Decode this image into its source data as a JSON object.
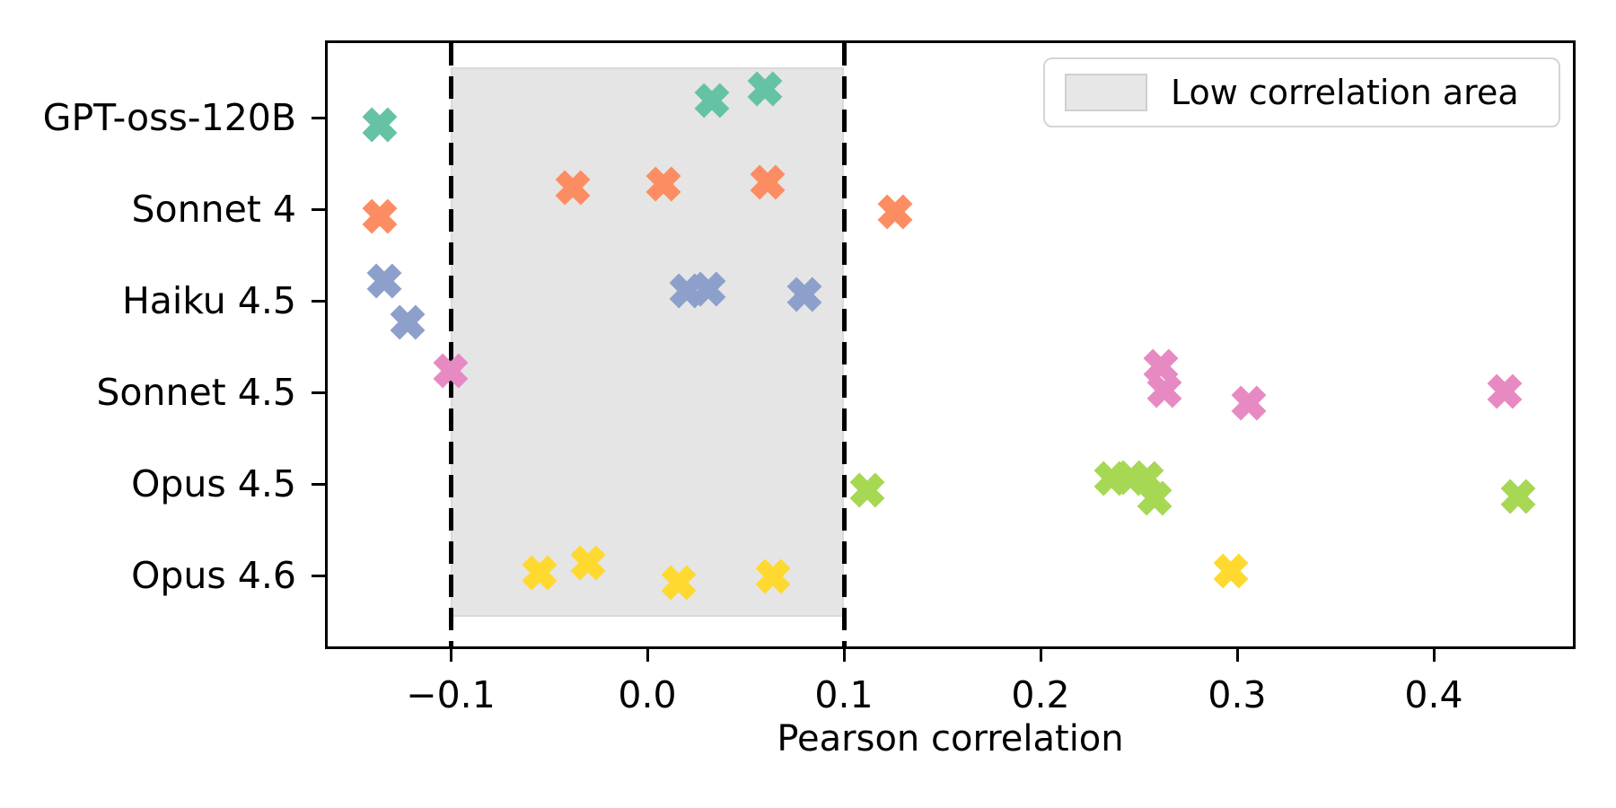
{
  "figure": {
    "xlabel": "Pearson correlation",
    "legend": {
      "label": "Low correlation area",
      "swatch_color": "#e7e7e7"
    }
  },
  "chart_data": {
    "type": "scatter",
    "title": "",
    "xlabel": "Pearson correlation",
    "ylabel": "",
    "xlim": [
      -0.164,
      0.472
    ],
    "x_ticks": [
      -0.1,
      0.0,
      0.1,
      0.2,
      0.3,
      0.4
    ],
    "x_tick_labels": [
      "−0.1",
      "0.0",
      "0.1",
      "0.2",
      "0.3",
      "0.4"
    ],
    "grid": false,
    "legend_position": "upper right",
    "categories": [
      "GPT-oss-120B",
      "Sonnet 4",
      "Haiku 4.5",
      "Sonnet 4.5",
      "Opus 4.5",
      "Opus 4.6"
    ],
    "low_correlation_band": {
      "x_min": -0.1,
      "x_max": 0.1,
      "label": "Low correlation area",
      "edge_style": "dashed"
    },
    "marker_style": "X",
    "series": [
      {
        "name": "GPT-oss-120B",
        "color": "#66c2a5",
        "row": 0,
        "points": [
          {
            "x": -0.136,
            "dy": 8
          },
          {
            "x": 0.033,
            "dy": -19
          },
          {
            "x": 0.06,
            "dy": -32
          }
        ]
      },
      {
        "name": "Sonnet 4",
        "color": "#fc8d62",
        "row": 1,
        "points": [
          {
            "x": -0.136,
            "dy": 8
          },
          {
            "x": -0.038,
            "dy": -24
          },
          {
            "x": 0.008,
            "dy": -28
          },
          {
            "x": 0.061,
            "dy": -30
          },
          {
            "x": 0.126,
            "dy": 3
          }
        ]
      },
      {
        "name": "Haiku 4.5",
        "color": "#8da0cb",
        "row": 2,
        "points": [
          {
            "x": -0.134,
            "dy": -22
          },
          {
            "x": -0.122,
            "dy": 24
          },
          {
            "x": 0.02,
            "dy": -11
          },
          {
            "x": 0.031,
            "dy": -13
          },
          {
            "x": 0.08,
            "dy": -7
          }
        ]
      },
      {
        "name": "Sonnet 4.5",
        "color": "#e78ac3",
        "row": 3,
        "points": [
          {
            "x": -0.1,
            "dy": -24
          },
          {
            "x": 0.261,
            "dy": -29
          },
          {
            "x": 0.263,
            "dy": -2
          },
          {
            "x": 0.306,
            "dy": 12
          },
          {
            "x": 0.436,
            "dy": -1
          }
        ]
      },
      {
        "name": "Opus 4.5",
        "color": "#a6d854",
        "row": 4,
        "points": [
          {
            "x": 0.112,
            "dy": 7
          },
          {
            "x": 0.236,
            "dy": -6
          },
          {
            "x": 0.246,
            "dy": -7
          },
          {
            "x": 0.254,
            "dy": -6
          },
          {
            "x": 0.258,
            "dy": 16
          },
          {
            "x": 0.443,
            "dy": 14
          }
        ]
      },
      {
        "name": "Opus 4.6",
        "color": "#ffd92f",
        "row": 5,
        "points": [
          {
            "x": -0.055,
            "dy": -3
          },
          {
            "x": -0.03,
            "dy": -14
          },
          {
            "x": 0.016,
            "dy": 8
          },
          {
            "x": 0.064,
            "dy": 1
          },
          {
            "x": 0.297,
            "dy": -5
          }
        ]
      }
    ]
  }
}
